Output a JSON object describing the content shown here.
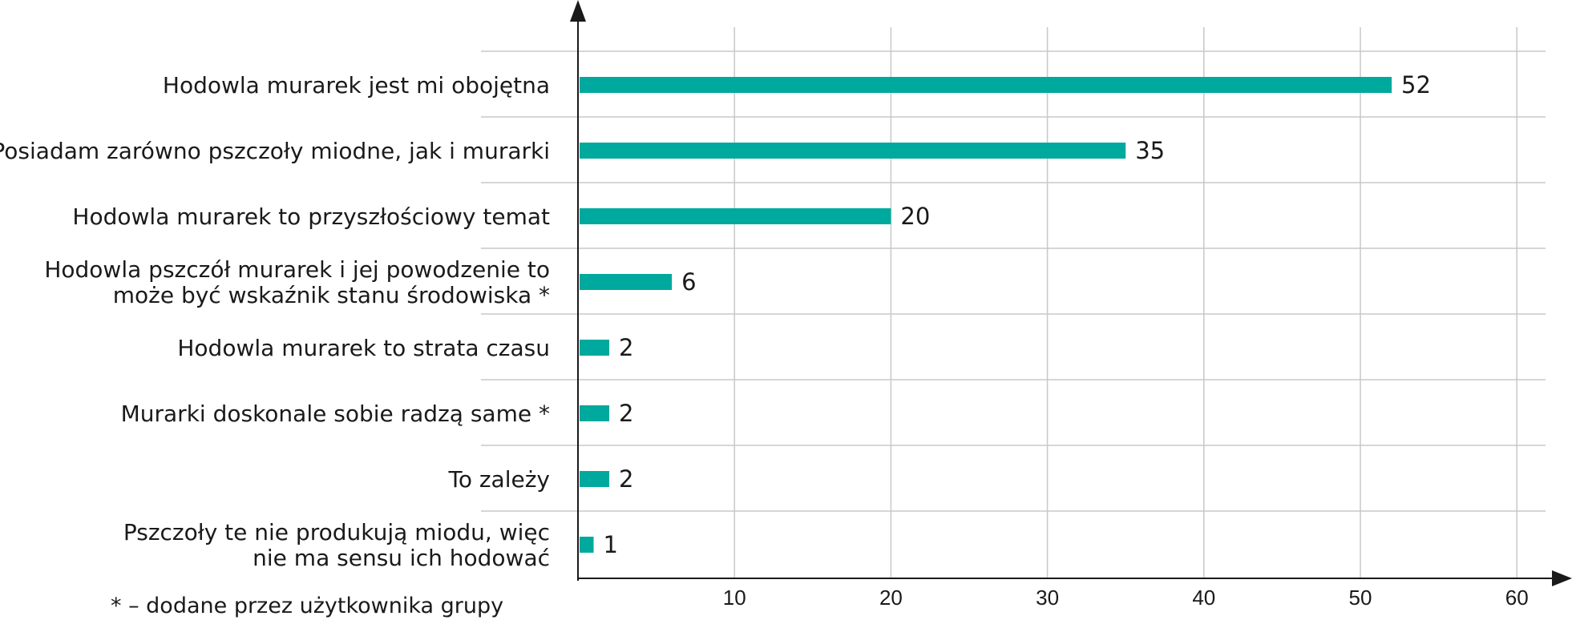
{
  "chart_data": {
    "type": "bar",
    "orientation": "horizontal",
    "categories": [
      [
        "Hodowla murarek jest mi obojętna"
      ],
      [
        "Posiadam zarówno pszczoły miodne, jak i murarki"
      ],
      [
        "Hodowla murarek to przyszłościowy temat"
      ],
      [
        "Hodowla pszczół murarek i jej powodzenie to",
        "może być wskaźnik stanu środowiska *"
      ],
      [
        "Hodowla murarek to strata czasu"
      ],
      [
        "Murarki doskonale sobie radzą same *"
      ],
      [
        "To zależy"
      ],
      [
        "Pszczoły te nie produkują miodu, więc",
        "nie ma sensu ich hodować"
      ]
    ],
    "values": [
      52,
      35,
      20,
      6,
      2,
      2,
      2,
      1
    ],
    "xlim": [
      0,
      60
    ],
    "xticks": [
      10,
      20,
      30,
      40,
      50,
      60
    ],
    "grid": true,
    "bar_color": "#00a99d",
    "footnote": "* – dodane przez użytkownika grupy"
  }
}
